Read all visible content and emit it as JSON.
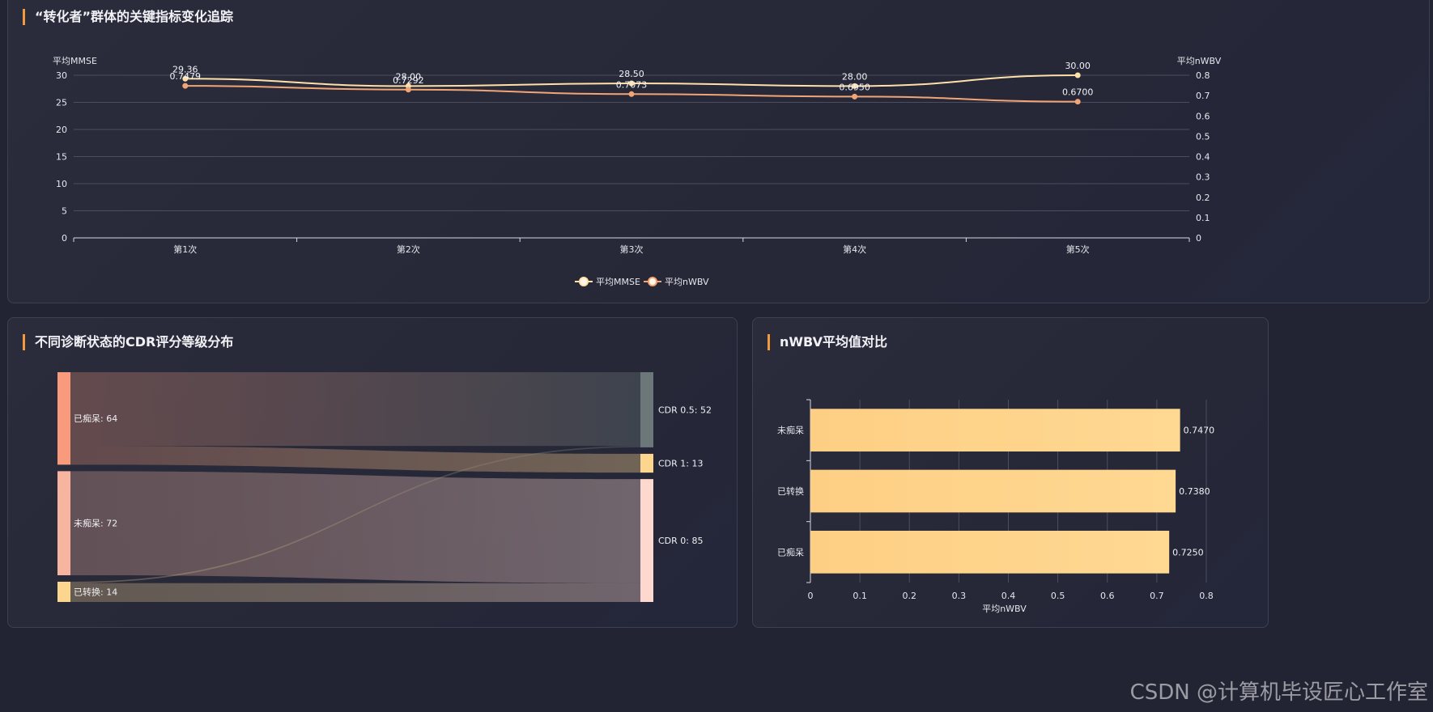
{
  "panels": {
    "trend": {
      "title": "“转化者”群体的关键指标变化追踪"
    },
    "sankey": {
      "title": "不同诊断状态的CDR评分等级分布"
    },
    "bar": {
      "title": "nWBV平均值对比"
    }
  },
  "watermark": "CSDN @计算机毕设匠心工作室",
  "colors": {
    "accent": "#f39a3c",
    "mmse": "#ffe0a8",
    "nwbv": "#f2a574",
    "bar": "#ffd48a"
  },
  "chart_data": [
    {
      "type": "line",
      "categories": [
        "第1次",
        "第2次",
        "第3次",
        "第4次",
        "第5次"
      ],
      "series": [
        {
          "name": "平均MMSE",
          "axis": "left",
          "values": [
            29.36,
            28.0,
            28.5,
            28.0,
            30.0
          ],
          "labels": [
            "29.36",
            "28.00",
            "28.50",
            "28.00",
            "30.00"
          ]
        },
        {
          "name": "平均nWBV",
          "axis": "right",
          "values": [
            0.7479,
            0.7292,
            0.7073,
            0.695,
            0.67
          ],
          "labels": [
            "0.7479",
            "0.7292",
            "0.7073",
            "0.6950",
            "0.6700"
          ]
        }
      ],
      "ylabel_left": "平均MMSE",
      "ylabel_right": "平均nWBV",
      "ylim_left": [
        0,
        30
      ],
      "ylim_right": [
        0,
        0.8
      ],
      "yticks_left": [
        "0",
        "5",
        "10",
        "15",
        "20",
        "25",
        "30"
      ],
      "yticks_right": [
        "0",
        "0.1",
        "0.2",
        "0.3",
        "0.4",
        "0.5",
        "0.6",
        "0.7",
        "0.8"
      ],
      "legend_position": "bottom-center",
      "grid": true
    },
    {
      "type": "sankey",
      "sources": [
        {
          "name": "已痴呆",
          "value": 64,
          "label": "已痴呆: 64",
          "color": "#f89a7c"
        },
        {
          "name": "未痴呆",
          "value": 72,
          "label": "未痴呆: 72",
          "color": "#f7b5a0"
        },
        {
          "name": "已转换",
          "value": 14,
          "label": "已转换: 14",
          "color": "#fcd58f"
        }
      ],
      "targets": [
        {
          "name": "CDR 0.5",
          "value": 52,
          "label": "CDR 0.5: 52",
          "color": "#6b7778"
        },
        {
          "name": "CDR 1",
          "value": 13,
          "label": "CDR 1: 13",
          "color": "#fcd58f"
        },
        {
          "name": "CDR 0",
          "value": 85,
          "label": "CDR 0: 85",
          "color": "#fcd8cf"
        }
      ],
      "links": [
        {
          "source": "已痴呆",
          "target": "CDR 0.5",
          "value": 51
        },
        {
          "source": "已痴呆",
          "target": "CDR 1",
          "value": 13
        },
        {
          "source": "未痴呆",
          "target": "CDR 0",
          "value": 72
        },
        {
          "source": "已转换",
          "target": "CDR 0.5",
          "value": 1
        },
        {
          "source": "已转换",
          "target": "CDR 0",
          "value": 13
        }
      ]
    },
    {
      "type": "bar",
      "orientation": "horizontal",
      "categories": [
        "已痴呆",
        "已转换",
        "未痴呆"
      ],
      "values": [
        0.725,
        0.738,
        0.747
      ],
      "value_labels": [
        "0.7250",
        "0.7380",
        "0.7470"
      ],
      "xlabel": "平均nWBV",
      "xlim": [
        0,
        0.8
      ],
      "xticks": [
        "0",
        "0.1",
        "0.2",
        "0.3",
        "0.4",
        "0.5",
        "0.6",
        "0.7",
        "0.8"
      ],
      "grid": true
    }
  ]
}
